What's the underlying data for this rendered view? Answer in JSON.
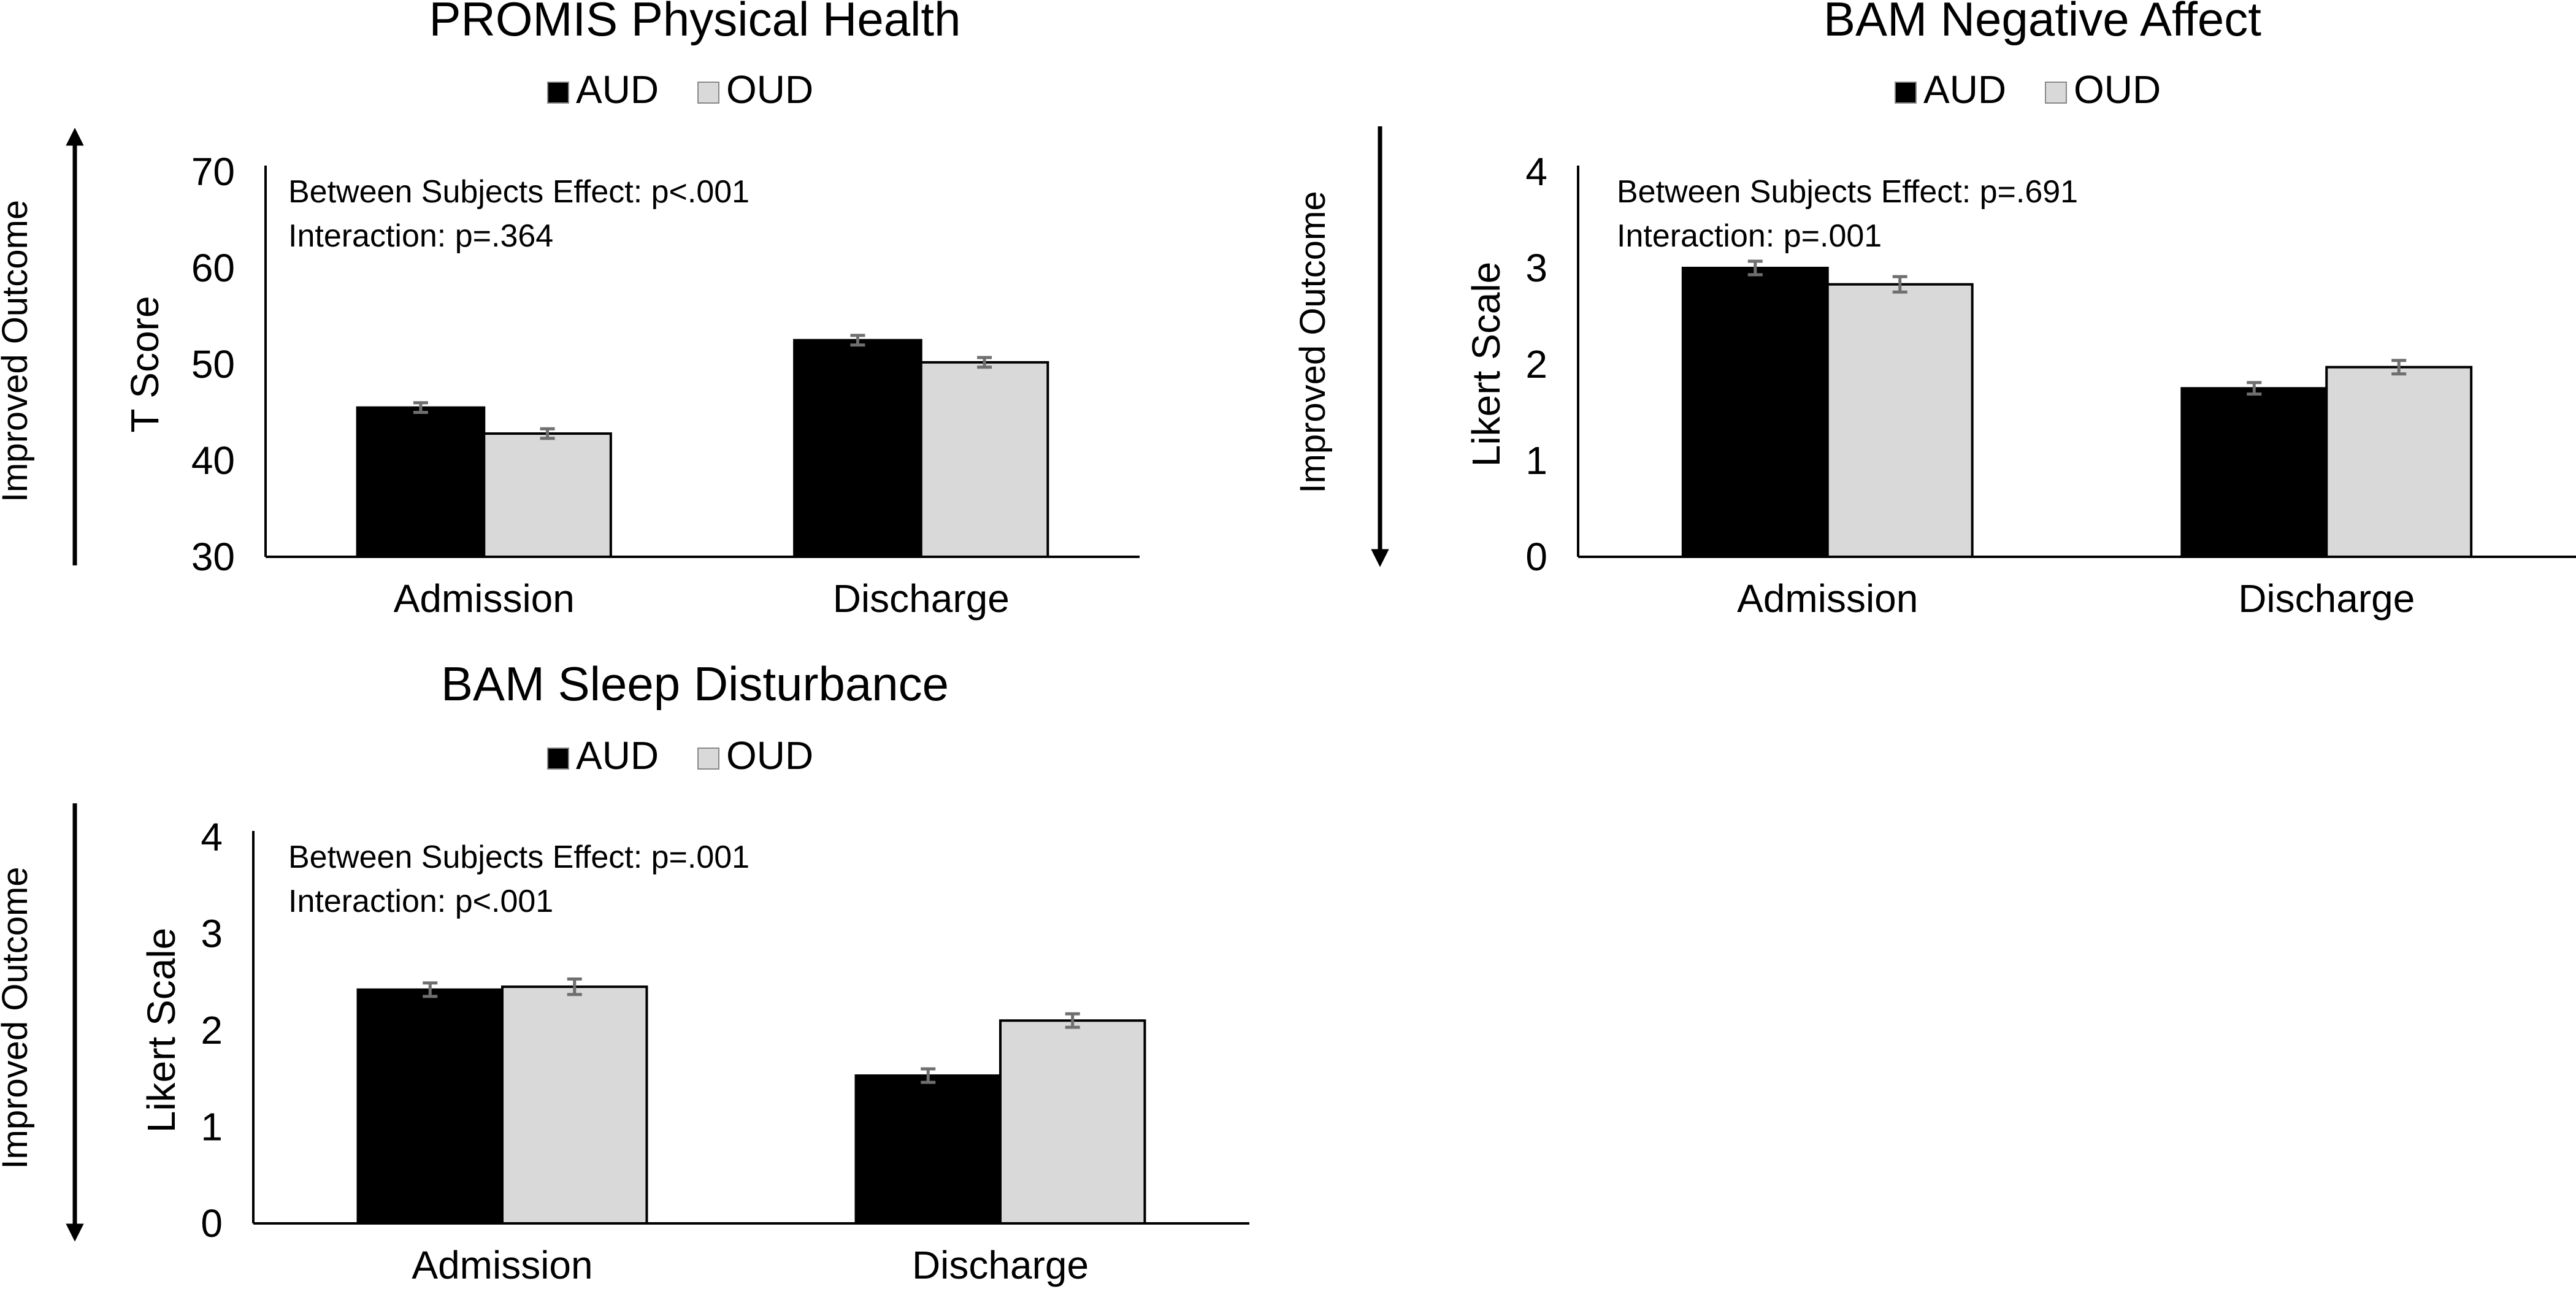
{
  "chart_data": [
    {
      "type": "bar",
      "title": "PROMIS Physical Health",
      "categories": [
        "Admission",
        "Discharge"
      ],
      "series": [
        {
          "name": "AUD",
          "color": "#000000",
          "values": [
            45.5,
            52.5
          ],
          "errors": [
            0.5,
            0.5
          ]
        },
        {
          "name": "OUD",
          "color": "#d9d9d9",
          "values": [
            42.8,
            50.2
          ],
          "errors": [
            0.5,
            0.5
          ]
        }
      ],
      "ylabel": "T Score",
      "ylim": [
        30,
        70
      ],
      "yticks": [
        "30",
        "40",
        "50",
        "60",
        "70"
      ],
      "direction_label": "Improved Outcome",
      "direction": "up",
      "annotations": [
        "Between Subjects Effect: p<.001",
        "Interaction: p=.364"
      ],
      "legend_position": "top-center",
      "grid": false
    },
    {
      "type": "bar",
      "title": "BAM Negative Affect",
      "categories": [
        "Admission",
        "Discharge"
      ],
      "series": [
        {
          "name": "AUD",
          "color": "#000000",
          "values": [
            3.0,
            1.75
          ],
          "errors": [
            0.07,
            0.06
          ]
        },
        {
          "name": "OUD",
          "color": "#d9d9d9",
          "values": [
            2.83,
            1.97
          ],
          "errors": [
            0.08,
            0.07
          ]
        }
      ],
      "ylabel": "Likert Scale",
      "ylim": [
        0,
        4
      ],
      "yticks": [
        "0",
        "1",
        "2",
        "3",
        "4"
      ],
      "direction_label": "Improved Outcome",
      "direction": "down",
      "annotations": [
        "Between Subjects Effect: p=.691",
        "Interaction: p=.001"
      ],
      "legend_position": "top-center",
      "grid": false
    },
    {
      "type": "bar",
      "title": "BAM Sleep Disturbance",
      "categories": [
        "Admission",
        "Discharge"
      ],
      "series": [
        {
          "name": "AUD",
          "color": "#000000",
          "values": [
            2.42,
            1.53
          ],
          "errors": [
            0.07,
            0.07
          ]
        },
        {
          "name": "OUD",
          "color": "#d9d9d9",
          "values": [
            2.45,
            2.1
          ],
          "errors": [
            0.08,
            0.07
          ]
        }
      ],
      "ylabel": "Likert Scale",
      "ylim": [
        0,
        4
      ],
      "yticks": [
        "0",
        "1",
        "2",
        "3",
        "4"
      ],
      "direction_label": "Improved Outcome",
      "direction": "down",
      "annotations": [
        "Between Subjects Effect: p=.001",
        "Interaction: p<.001"
      ],
      "legend_position": "top-center",
      "grid": false
    }
  ]
}
